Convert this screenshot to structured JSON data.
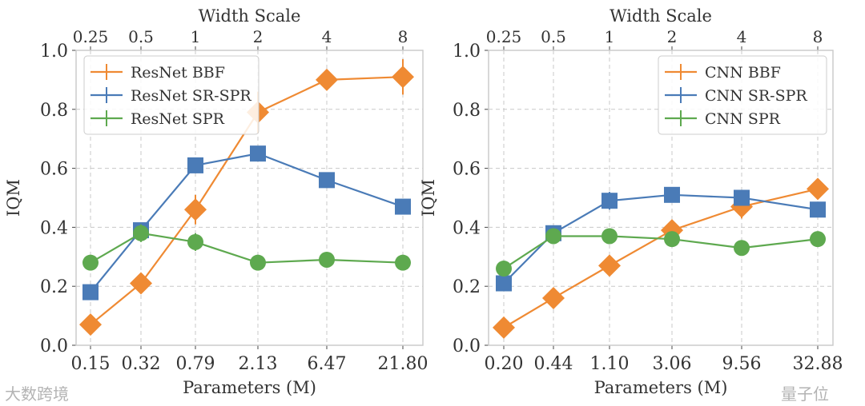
{
  "chart_data": [
    {
      "type": "line",
      "xlabel": "Parameters (M)",
      "ylabel": "IQM",
      "top_xlabel": "Width Scale",
      "categories": [
        "0.15",
        "0.32",
        "0.79",
        "2.13",
        "6.47",
        "21.80"
      ],
      "top_ticks": [
        "0.25",
        "0.5",
        "1",
        "2",
        "4",
        "8"
      ],
      "yticks": [
        "0.0",
        "0.2",
        "0.4",
        "0.6",
        "0.8",
        "1.0"
      ],
      "ylim": [
        0,
        1
      ],
      "grid": true,
      "legend_position": "top-left",
      "series": [
        {
          "name": "ResNet BBF",
          "color": "#ef8a33",
          "marker": "diamond",
          "values": [
            0.07,
            0.21,
            0.46,
            0.79,
            0.9,
            0.91
          ],
          "err": [
            0.01,
            0.02,
            0.05,
            0.07,
            0.02,
            0.06
          ]
        },
        {
          "name": "ResNet SR-SPR",
          "color": "#4a7bb7",
          "marker": "square",
          "values": [
            0.18,
            0.39,
            0.61,
            0.65,
            0.56,
            0.47
          ],
          "err": [
            0.01,
            0.02,
            0.01,
            0.01,
            0.01,
            0.01
          ]
        },
        {
          "name": "ResNet SPR",
          "color": "#5ea94f",
          "marker": "circle",
          "values": [
            0.28,
            0.38,
            0.35,
            0.28,
            0.29,
            0.28
          ],
          "err": [
            0.01,
            0.03,
            0.03,
            0.01,
            0.01,
            0.01
          ]
        }
      ]
    },
    {
      "type": "line",
      "xlabel": "Parameters (M)",
      "ylabel": "IQM",
      "top_xlabel": "Width Scale",
      "categories": [
        "0.20",
        "0.44",
        "1.10",
        "3.06",
        "9.56",
        "32.88"
      ],
      "top_ticks": [
        "0.25",
        "0.5",
        "1",
        "2",
        "4",
        "8"
      ],
      "yticks": [
        "0.0",
        "0.2",
        "0.4",
        "0.6",
        "0.8",
        "1.0"
      ],
      "ylim": [
        0,
        1
      ],
      "grid": true,
      "legend_position": "top-right",
      "series": [
        {
          "name": "CNN BBF",
          "color": "#ef8a33",
          "marker": "diamond",
          "values": [
            0.06,
            0.16,
            0.27,
            0.39,
            0.47,
            0.53
          ],
          "err": [
            0.01,
            0.01,
            0.01,
            0.03,
            0.04,
            0.01
          ]
        },
        {
          "name": "CNN SR-SPR",
          "color": "#4a7bb7",
          "marker": "square",
          "values": [
            0.21,
            0.38,
            0.49,
            0.51,
            0.5,
            0.46
          ],
          "err": [
            0.01,
            0.02,
            0.03,
            0.02,
            0.02,
            0.02
          ]
        },
        {
          "name": "CNN SPR",
          "color": "#5ea94f",
          "marker": "circle",
          "values": [
            0.26,
            0.37,
            0.37,
            0.36,
            0.33,
            0.36
          ],
          "err": [
            0.02,
            0.02,
            0.02,
            0.02,
            0.02,
            0.02
          ]
        }
      ]
    }
  ],
  "watermarks": {
    "left": "大数跨境",
    "right": "量子位"
  }
}
